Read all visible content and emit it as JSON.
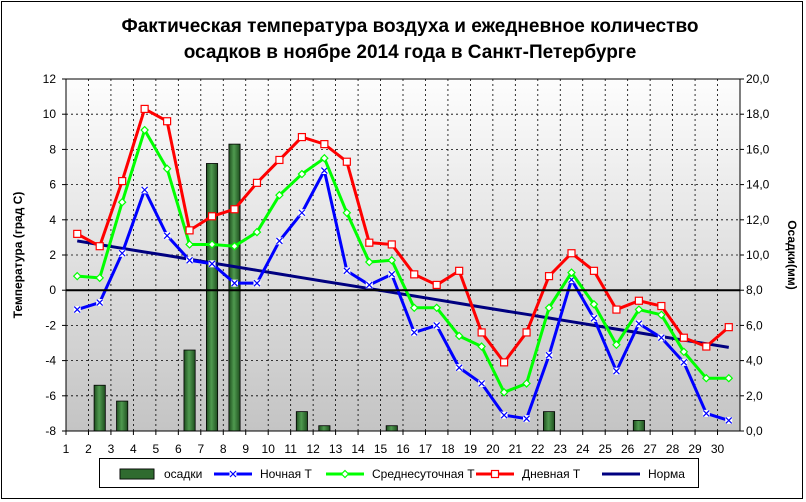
{
  "title_line1": "Фактическая температура воздуха и ежедневное количество",
  "title_line2": "осадков в ноябре 2014 года в Санкт-Петербурге",
  "chart_data": {
    "type": "line",
    "title": "Фактическая температура воздуха и ежедневное количество осадков в ноябре 2014 года в Санкт-Петербурге",
    "xlabel": "",
    "ylabel": "Температура (град С)",
    "y2label": "Осадки(мм)",
    "ylim": [
      -8,
      12
    ],
    "y2lim": [
      0,
      20
    ],
    "yticks": [
      "-8",
      "-6",
      "-4",
      "-2",
      "0",
      "2",
      "4",
      "6",
      "8",
      "10",
      "12"
    ],
    "y2ticks": [
      "0,0",
      "2,0",
      "4,0",
      "6,0",
      "8,0",
      "10,0",
      "12,0",
      "14,0",
      "16,0",
      "18,0",
      "20,0"
    ],
    "x": [
      1,
      2,
      3,
      4,
      5,
      6,
      7,
      8,
      9,
      10,
      11,
      12,
      13,
      14,
      15,
      16,
      17,
      18,
      19,
      20,
      21,
      22,
      23,
      24,
      25,
      26,
      27,
      28,
      29,
      30
    ],
    "grid": true,
    "legend_position": "bottom",
    "series": [
      {
        "name": "осадки",
        "type": "bar",
        "axis": "right",
        "color": "#2f6b2f",
        "values": [
          0,
          2.6,
          1.7,
          0,
          0,
          4.6,
          15.2,
          16.3,
          0,
          0,
          1.1,
          0.3,
          0,
          0,
          0.3,
          0,
          0,
          0,
          0,
          0,
          0,
          1.1,
          0,
          0,
          0,
          0.6,
          0,
          0,
          0,
          0
        ]
      },
      {
        "name": "Ночная Т",
        "type": "line",
        "axis": "left",
        "color": "#0000ff",
        "values": [
          -1.1,
          -0.7,
          2.1,
          5.7,
          3.1,
          1.7,
          1.5,
          0.4,
          0.4,
          2.8,
          4.4,
          6.8,
          1.1,
          0.3,
          0.9,
          -2.4,
          -2.0,
          -4.4,
          -5.3,
          -7.1,
          -7.3,
          -3.7,
          0.6,
          -1.6,
          -4.6,
          -1.9,
          -2.7,
          -4.1,
          -7.0,
          -7.4
        ]
      },
      {
        "name": "Среднесуточная Т",
        "type": "line",
        "axis": "left",
        "color": "#00ff00",
        "values": [
          0.8,
          0.7,
          5.0,
          9.1,
          6.9,
          2.6,
          2.6,
          2.5,
          3.3,
          5.4,
          6.6,
          7.5,
          4.4,
          1.6,
          1.7,
          -1.0,
          -1.0,
          -2.6,
          -3.2,
          -5.8,
          -5.3,
          -1.0,
          1.0,
          -0.8,
          -3.1,
          -1.1,
          -1.4,
          -3.5,
          -5.0,
          -5.0
        ]
      },
      {
        "name": "Дневная Т",
        "type": "line",
        "axis": "left",
        "color": "#ff0000",
        "values": [
          3.2,
          2.5,
          6.2,
          10.3,
          9.6,
          3.4,
          4.2,
          4.6,
          6.1,
          7.4,
          8.7,
          8.3,
          7.3,
          2.7,
          2.6,
          0.9,
          0.3,
          1.1,
          -2.4,
          -4.1,
          -2.4,
          0.8,
          2.1,
          1.1,
          -1.1,
          -0.6,
          -0.9,
          -2.7,
          -3.2,
          -2.1
        ]
      },
      {
        "name": "Норма",
        "type": "line",
        "axis": "left",
        "color": "#000080",
        "values": [
          2.8,
          2.59,
          2.38,
          2.17,
          1.97,
          1.76,
          1.55,
          1.34,
          1.13,
          0.92,
          0.71,
          0.5,
          0.3,
          0.09,
          -0.12,
          -0.33,
          -0.54,
          -0.75,
          -0.96,
          -1.17,
          -1.37,
          -1.58,
          -1.79,
          -2.0,
          -2.21,
          -2.42,
          -2.63,
          -2.84,
          -3.04,
          -3.25
        ]
      }
    ]
  },
  "colors": {
    "plot_top": "#fdfdfd",
    "plot_bottom": "#c4c4c4",
    "grid": "#000000",
    "zero_line": "#000000"
  }
}
